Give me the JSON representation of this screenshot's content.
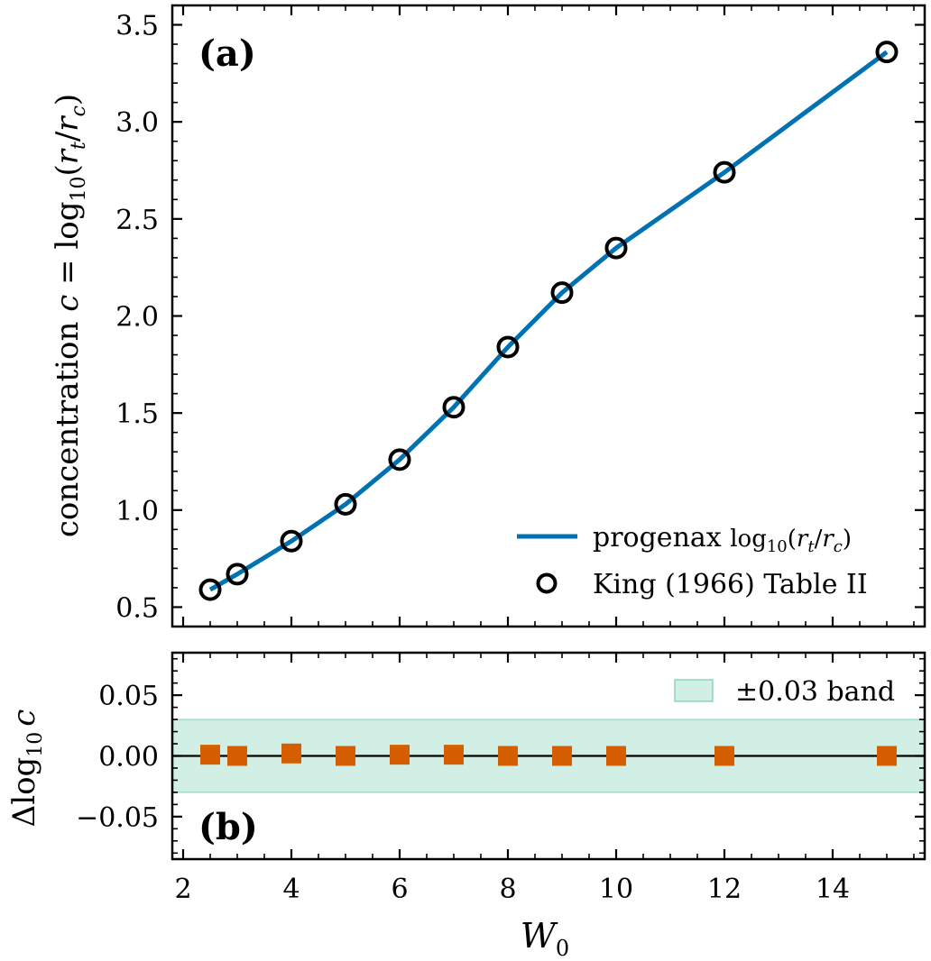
{
  "chart_data": [
    {
      "panel_label": "(a)",
      "type": "line",
      "xlabel_var": "W",
      "xlabel_sub": "0",
      "ylabel": {
        "prefix": "concentration ",
        "c": "c",
        "eq": " = log",
        "sub10": "10",
        "open": "(",
        "r1": "r",
        "r1sub": "t",
        "slash": "/",
        "r2": "r",
        "r2sub": "c",
        "close": ")"
      },
      "xlim": [
        1.8,
        15.7
      ],
      "ylim": [
        0.4,
        3.6
      ],
      "xticks": [
        "2",
        "4",
        "6",
        "8",
        "10",
        "12",
        "14"
      ],
      "yticks": [
        "0.5",
        "1.0",
        "1.5",
        "2.0",
        "2.5",
        "3.0",
        "3.5"
      ],
      "series": [
        {
          "name": {
            "text": "progenax ",
            "log": "log",
            "sub10": "10",
            "open": "(",
            "r1": "r",
            "r1sub": "t",
            "slash": "/",
            "r2": "r",
            "r2sub": "c",
            "close": ")"
          },
          "style": "line",
          "color": "#0072B2",
          "x": [
            2.5,
            3,
            4,
            5,
            6,
            7,
            8,
            9,
            10,
            12,
            15
          ],
          "y": [
            0.59,
            0.67,
            0.84,
            1.03,
            1.26,
            1.53,
            1.84,
            2.12,
            2.35,
            2.74,
            3.36
          ]
        },
        {
          "name": "King (1966) Table II",
          "style": "open-circle",
          "color": "#000000",
          "x": [
            2.5,
            3,
            4,
            5,
            6,
            7,
            8,
            9,
            10,
            12,
            15
          ],
          "y": [
            0.59,
            0.67,
            0.84,
            1.03,
            1.26,
            1.53,
            1.84,
            2.12,
            2.35,
            2.74,
            3.36
          ]
        }
      ],
      "legend_position": "lower right",
      "grid": false
    },
    {
      "panel_label": "(b)",
      "type": "scatter",
      "xlabel_var": "W",
      "xlabel_sub": "0",
      "ylabel": {
        "delta": "Δ",
        "log": "log",
        "sub10": "10",
        "c": "c"
      },
      "xlim": [
        1.8,
        15.7
      ],
      "ylim": [
        -0.085,
        0.085
      ],
      "xticks": [
        "2",
        "4",
        "6",
        "8",
        "10",
        "12",
        "14"
      ],
      "yticks": [
        "−0.05",
        "0.00",
        "0.05"
      ],
      "band": {
        "lower": -0.03,
        "upper": 0.03,
        "color": "#4DBF9C",
        "label": "±0.03 band"
      },
      "reference_line": 0,
      "series": [
        {
          "style": "square",
          "color": "#D55E00",
          "x": [
            2.5,
            3,
            4,
            5,
            6,
            7,
            8,
            9,
            10,
            12,
            15
          ],
          "y": [
            0.001,
            0.0,
            0.002,
            0.0,
            0.001,
            0.001,
            0.0,
            0.0,
            0.0,
            0.0,
            0.0
          ]
        }
      ],
      "legend_position": "upper right",
      "grid": false
    }
  ]
}
